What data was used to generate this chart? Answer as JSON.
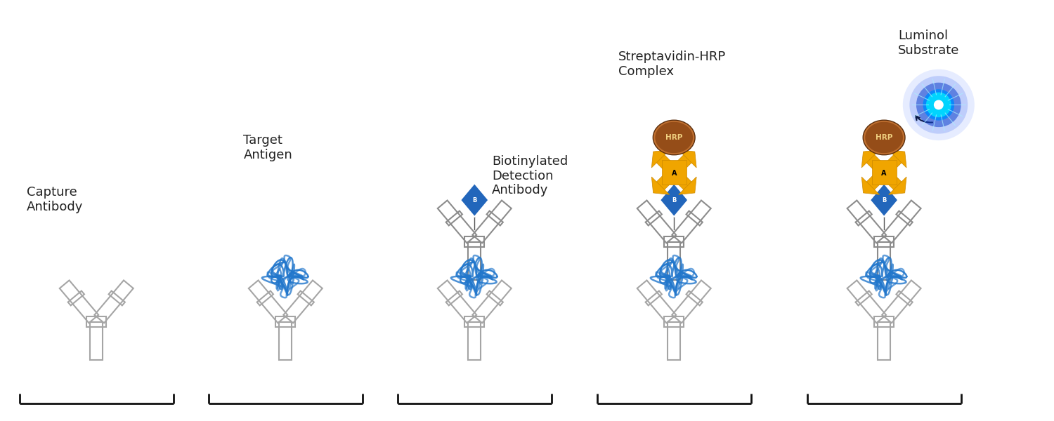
{
  "bg_color": "#ffffff",
  "ab_color_fill": "#cccccc",
  "ab_edge_color": "#888888",
  "antigen_color": "#2277cc",
  "biotin_color": "#2266bb",
  "strep_color": "#f0a500",
  "strep_edge": "#cc8800",
  "hrp_color_top": "#8b4513",
  "hrp_color_bot": "#c06020",
  "luminol_blue": "#1144cc",
  "luminol_cyan": "#00ccff",
  "text_color": "#222222",
  "bracket_color": "#111111",
  "panel_labels": [
    "Capture\nAntibody",
    "Target\nAntigen",
    "Biotinylated\nDetection\nAntibody",
    "Streptavidin-HRP\nComplex",
    "Luminol\nSubstrate"
  ],
  "figsize": [
    15,
    6
  ]
}
